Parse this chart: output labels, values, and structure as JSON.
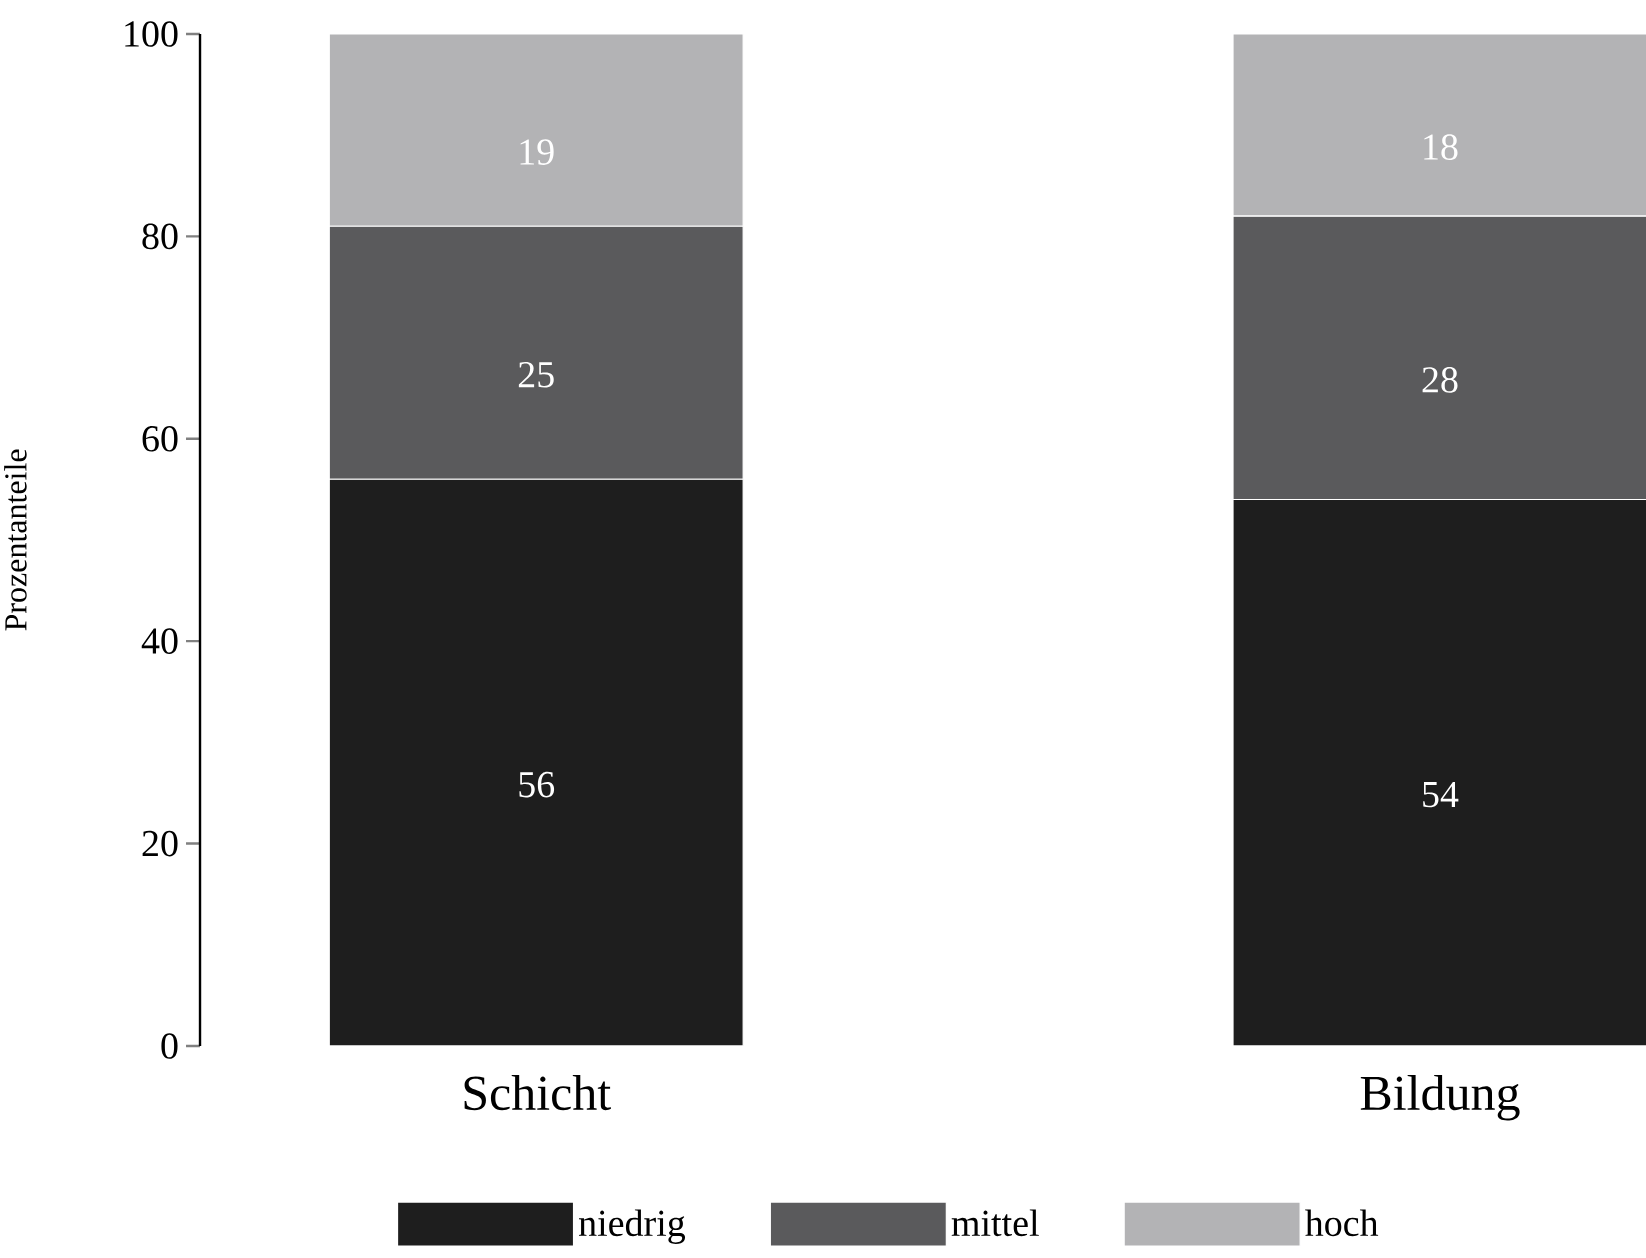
{
  "chart_data": {
    "type": "bar",
    "stacked": true,
    "ylabel": "Prozentanteile",
    "categories": [
      "Schicht",
      "Bildung"
    ],
    "series": [
      {
        "name": "niedrig",
        "color": "#1e1e1e",
        "values": [
          56,
          54
        ]
      },
      {
        "name": "mittel",
        "color": "#5a5a5c",
        "values": [
          25,
          28
        ]
      },
      {
        "name": "hoch",
        "color": "#b3b3b5",
        "values": [
          19,
          18
        ]
      }
    ],
    "ylim": [
      0,
      100
    ],
    "yticks": [
      0,
      20,
      40,
      60,
      80,
      100
    ],
    "data_labels": true,
    "legend": "bottom",
    "grid": false
  }
}
